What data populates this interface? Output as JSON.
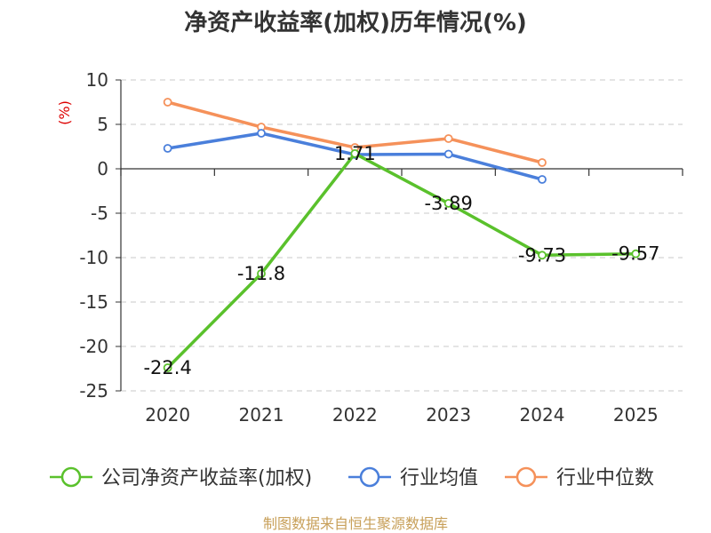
{
  "chart_data": {
    "type": "line",
    "title": "净资产收益率(加权)历年情况(%)",
    "ylabel": "(%)",
    "xlabel": "",
    "categories": [
      "2020",
      "2021",
      "2022",
      "2023",
      "2024",
      "2025"
    ],
    "ylim": [
      -25,
      10
    ],
    "yticks": [
      10,
      5,
      0,
      -5,
      -10,
      -15,
      -20,
      -25
    ],
    "grid": true,
    "legend_position": "bottom",
    "series": [
      {
        "name": "公司净资产收益率(加权)",
        "color": "#5ac12c",
        "values": [
          -22.4,
          -11.8,
          1.71,
          -3.89,
          -9.73,
          -9.57
        ],
        "labels": [
          "-22.4",
          "-11.8",
          "1.71",
          "-3.89",
          "-9.73",
          "-9.57"
        ]
      },
      {
        "name": "行业均值",
        "color": "#4a7fdb",
        "values": [
          2.3,
          4.0,
          1.6,
          1.65,
          -1.2,
          null
        ]
      },
      {
        "name": "行业中位数",
        "color": "#f5915a",
        "values": [
          7.5,
          4.7,
          2.4,
          3.4,
          0.7,
          null
        ]
      }
    ],
    "source": "制图数据来自恒生聚源数据库"
  }
}
